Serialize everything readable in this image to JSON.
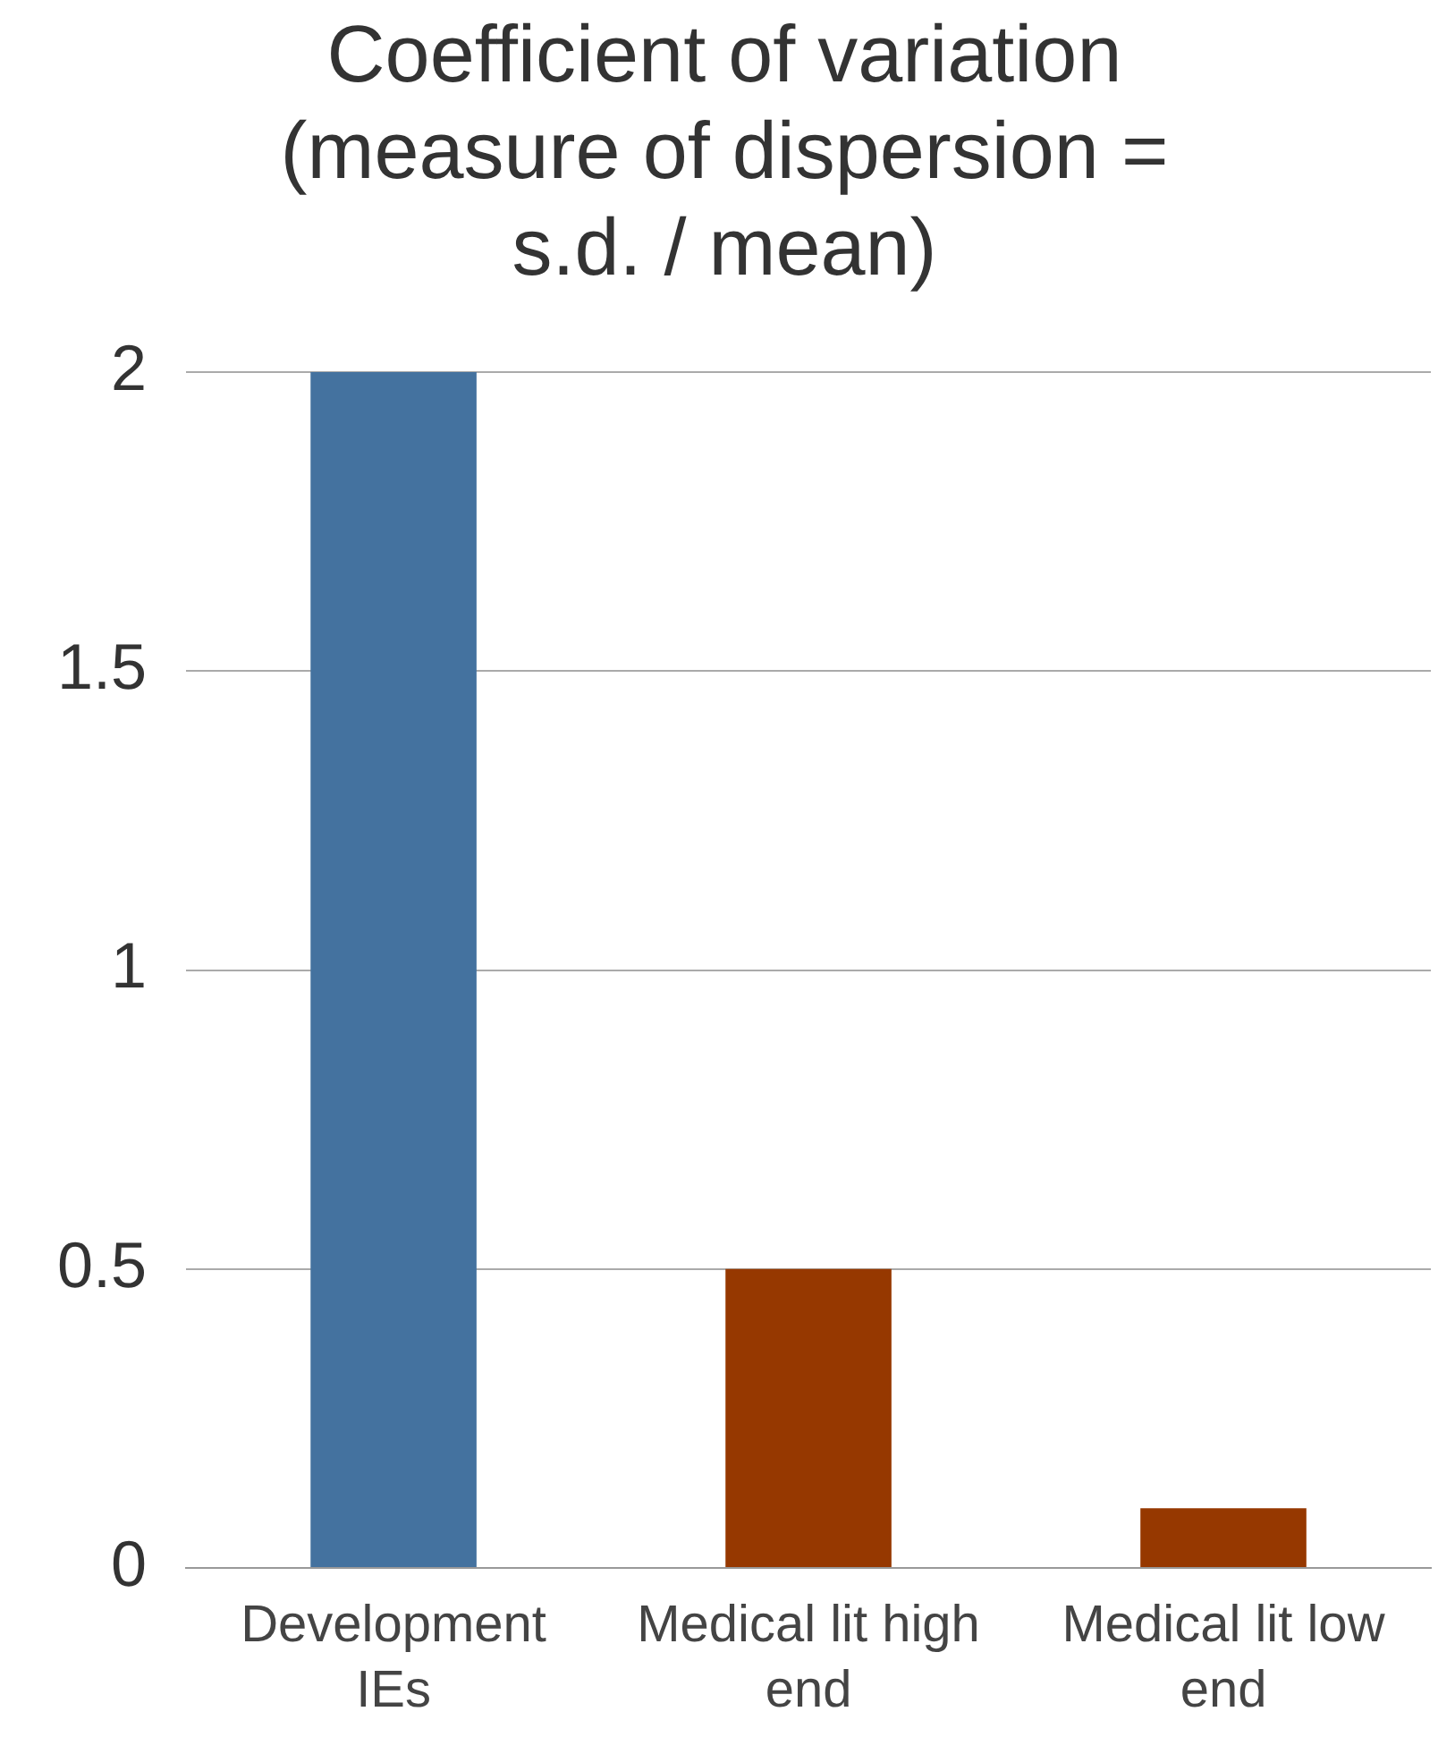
{
  "chart_data": {
    "type": "bar",
    "title": "Coefficient of variation (measure of dispersion = s.d. / mean)",
    "categories": [
      "Development IEs",
      "Medical lit high end",
      "Medical lit low end"
    ],
    "values": [
      2,
      0.5,
      0.1
    ],
    "colors": [
      "#44729f",
      "#963800",
      "#963800"
    ],
    "ylim": [
      0,
      2
    ],
    "yticks": [
      0,
      0.5,
      1,
      1.5,
      2
    ],
    "grid": "y",
    "legend": false
  }
}
